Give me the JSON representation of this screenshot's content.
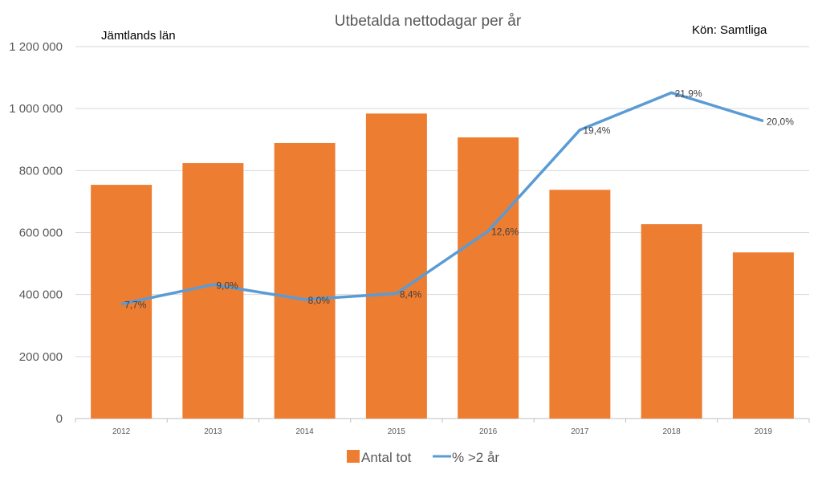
{
  "chart_data": {
    "type": "bar",
    "title": "Utbetalda nettodagar per år",
    "annotations": {
      "left": "Jämtlands län",
      "right": "Kön: Samtliga"
    },
    "categories": [
      "2012",
      "2013",
      "2014",
      "2015",
      "2016",
      "2017",
      "2018",
      "2019"
    ],
    "series": [
      {
        "name": "Antal tot",
        "type": "bar",
        "axis": "primary",
        "color": "#ED7D31",
        "values": [
          754000,
          824000,
          889000,
          984000,
          907000,
          738000,
          627000,
          536000
        ]
      },
      {
        "name": "% >2 år",
        "type": "line",
        "axis": "secondary",
        "color": "#5B9BD5",
        "values": [
          7.7,
          9.0,
          8.0,
          8.4,
          12.6,
          19.4,
          21.9,
          20.0
        ],
        "labels": [
          "7,7%",
          "9,0%",
          "8,0%",
          "8,4%",
          "12,6%",
          "19,4%",
          "21,9%",
          "20,0%"
        ]
      }
    ],
    "ylim": [
      0,
      1200000
    ],
    "y2lim": [
      0,
      25
    ],
    "yticks": [
      0,
      200000,
      400000,
      600000,
      800000,
      1000000,
      1200000
    ],
    "ytick_labels": [
      "0",
      "200 000",
      "400 000",
      "600 000",
      "800 000",
      "1 000 000",
      "1 200 000"
    ],
    "grid": true,
    "legend_position": "bottom",
    "xlabel": "",
    "ylabel": ""
  }
}
